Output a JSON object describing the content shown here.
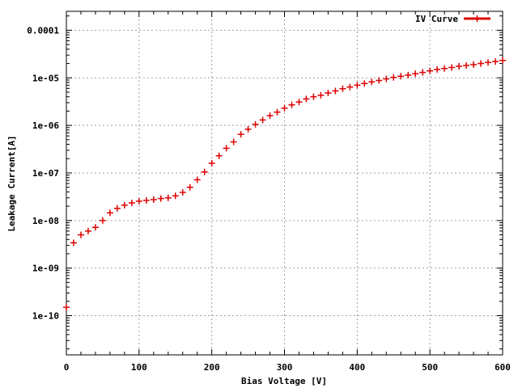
{
  "chart_data": {
    "type": "scatter",
    "title": "",
    "xlabel": "Bias Voltage [V]",
    "ylabel": "Leakage Current[A]",
    "xlim": [
      0,
      600
    ],
    "ylim": [
      1.5e-11,
      0.00025
    ],
    "yscale": "log",
    "grid": true,
    "legend_position": "top-right",
    "x_ticks": [
      0,
      100,
      200,
      300,
      400,
      500,
      600
    ],
    "x_tick_labels": [
      "0",
      "100",
      "200",
      "300",
      "400",
      "500",
      "600"
    ],
    "y_ticks": [
      1e-10,
      1e-09,
      1e-08,
      1e-07,
      1e-06,
      1e-05,
      0.0001
    ],
    "y_tick_labels": [
      "1e-10",
      "1e-09",
      "1e-08",
      "1e-07",
      "1e-06",
      "1e-05",
      "0.0001"
    ],
    "series": [
      {
        "name": "IV Curve",
        "color": "#dd0000",
        "x": [
          0,
          10,
          20,
          30,
          40,
          50,
          60,
          70,
          80,
          90,
          100,
          110,
          120,
          130,
          140,
          150,
          160,
          170,
          180,
          190,
          200,
          210,
          220,
          230,
          240,
          250,
          260,
          270,
          280,
          290,
          300,
          310,
          320,
          330,
          340,
          350,
          360,
          370,
          380,
          390,
          400,
          410,
          420,
          430,
          440,
          450,
          460,
          470,
          480,
          490,
          500,
          510,
          520,
          530,
          540,
          550,
          560,
          570,
          580,
          590,
          600
        ],
        "y": [
          1.5e-10,
          3.4e-09,
          5e-09,
          6e-09,
          7.2e-09,
          1e-08,
          1.45e-08,
          1.8e-08,
          2.1e-08,
          2.35e-08,
          2.55e-08,
          2.65e-08,
          2.75e-08,
          2.9e-08,
          3e-08,
          3.3e-08,
          3.9e-08,
          5e-08,
          7.2e-08,
          1.05e-07,
          1.6e-07,
          2.3e-07,
          3.3e-07,
          4.5e-07,
          6.5e-07,
          8.3e-07,
          1.05e-06,
          1.3e-06,
          1.6e-06,
          1.9e-06,
          2.3e-06,
          2.7e-06,
          3.1e-06,
          3.6e-06,
          4e-06,
          4.3e-06,
          4.8e-06,
          5.3e-06,
          5.9e-06,
          6.4e-06,
          7e-06,
          7.6e-06,
          8.2e-06,
          8.8e-06,
          9.5e-06,
          1.02e-05,
          1.08e-05,
          1.14e-05,
          1.22e-05,
          1.3e-05,
          1.4e-05,
          1.5e-05,
          1.57e-05,
          1.65e-05,
          1.75e-05,
          1.82e-05,
          1.9e-05,
          2e-05,
          2.1e-05,
          2.2e-05,
          2.32e-05
        ]
      }
    ]
  }
}
